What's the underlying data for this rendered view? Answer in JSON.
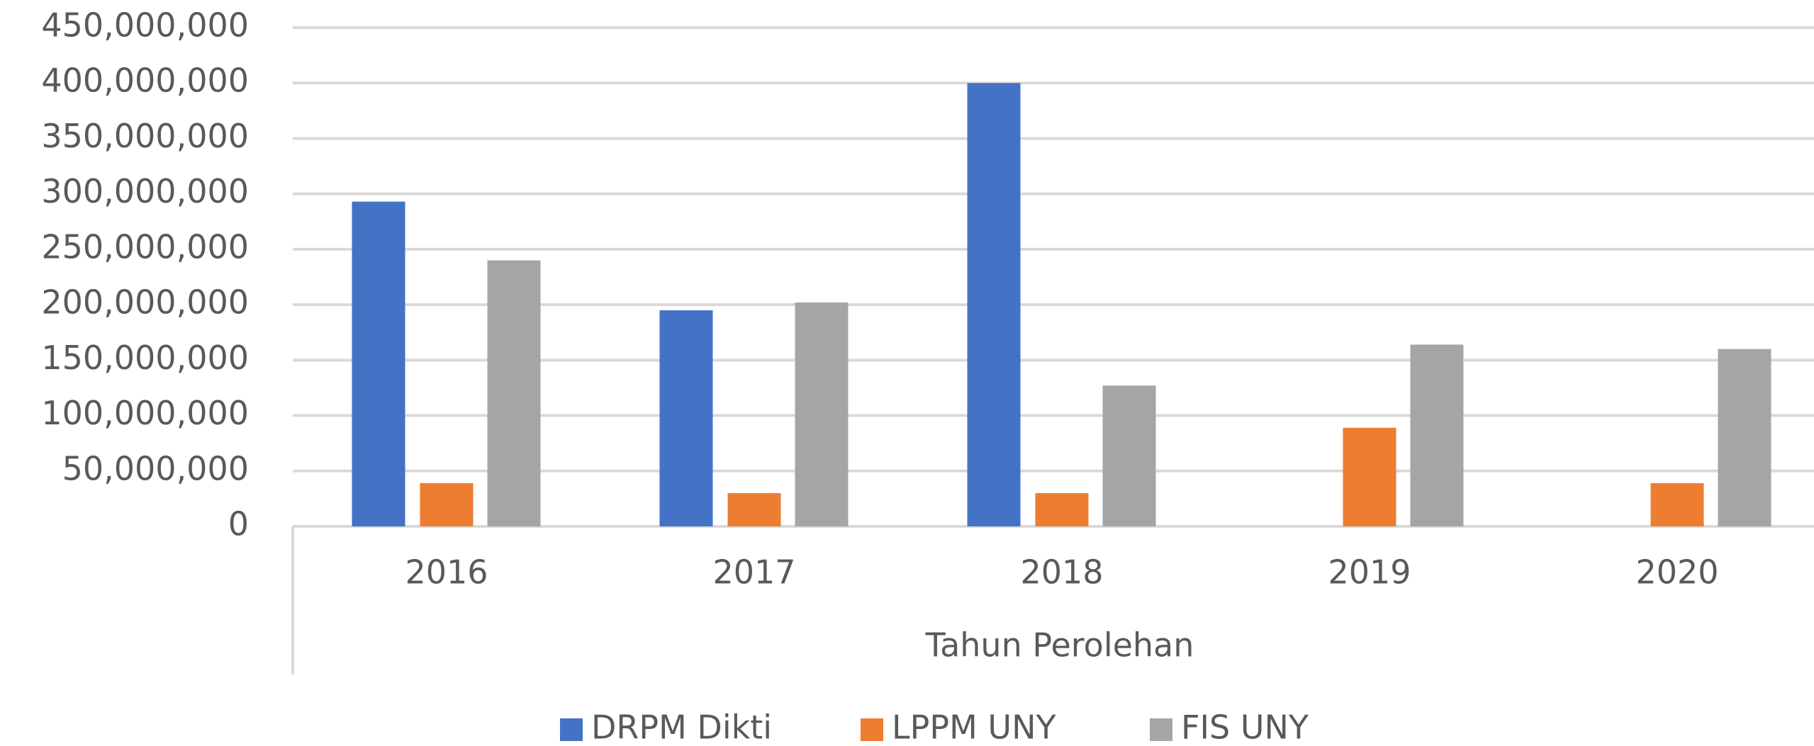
{
  "chart_data": {
    "type": "bar",
    "x_label": "Tahun Perolehan",
    "categories": [
      "2016",
      "2017",
      "2018",
      "2019",
      "2020"
    ],
    "series": [
      {
        "name": "DRPM Dikti",
        "color": "#4472c4",
        "values": [
          293000000,
          195000000,
          400000000,
          null,
          null
        ]
      },
      {
        "name": "LPPM UNY",
        "color": "#ed7d31",
        "values": [
          39000000,
          30000000,
          30000000,
          89000000,
          39000000
        ]
      },
      {
        "name": "FIS UNY",
        "color": "#a5a5a5",
        "values": [
          240000000,
          202000000,
          127000000,
          164000000,
          160000000
        ]
      }
    ],
    "ylim": [
      0,
      450000000
    ],
    "yticks": [
      {
        "value": 0,
        "label": "0"
      },
      {
        "value": 50000000,
        "label": "50,000,000"
      },
      {
        "value": 100000000,
        "label": "100,000,000"
      },
      {
        "value": 150000000,
        "label": "150,000,000"
      },
      {
        "value": 200000000,
        "label": "200,000,000"
      },
      {
        "value": 250000000,
        "label": "250,000,000"
      },
      {
        "value": 300000000,
        "label": "300,000,000"
      },
      {
        "value": 350000000,
        "label": "350,000,000"
      },
      {
        "value": 400000000,
        "label": "400,000,000"
      },
      {
        "value": 450000000,
        "label": "450,000,000"
      }
    ],
    "grid": true,
    "legend": "bottom"
  }
}
